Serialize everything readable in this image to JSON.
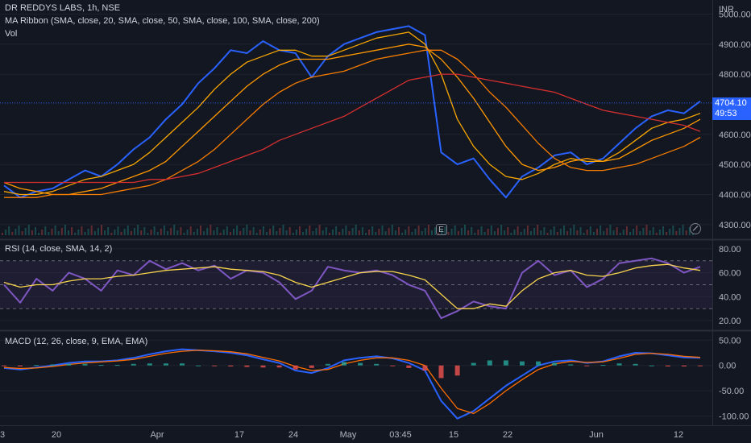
{
  "header": {
    "symbol_line": "DR REDDYS LABS, 1h, NSE",
    "ma_ribbon_line": "MA Ribbon (SMA, close, 20, SMA, close, 50, SMA, close, 100, SMA, close, 200)",
    "vol_line": "Vol",
    "currency": "INR"
  },
  "price_tag": {
    "value": "4704.10",
    "countdown": "49:53"
  },
  "colors": {
    "background": "#131722",
    "price": "#2962ff",
    "sma20": "#f7a600",
    "sma50": "#ff9800",
    "sma100": "#f57c00",
    "sma200": "#d32f2f",
    "rsi": "#7e57c2",
    "rsi_ma": "#f7d44c",
    "macd": "#2962ff",
    "signal": "#ff6d00",
    "hist_pos": "#26a69a",
    "hist_neg": "#ef5350"
  },
  "rsi_panel": {
    "title": "RSI (14, close, SMA, 14, 2)"
  },
  "macd_panel": {
    "title": "MACD (12, 26, close, 9, EMA, EMA)"
  },
  "x_ticks": [
    "3",
    "20",
    "Apr",
    "17",
    "24",
    "May",
    "03:45",
    "15",
    "22",
    "Jun",
    "12"
  ],
  "earnings_marker": "E",
  "chart_data": [
    {
      "type": "line",
      "panel": "price",
      "ylim": [
        4270,
        5020
      ],
      "y_ticks": [
        {
          "value": 5000,
          "label": "5000.00"
        },
        {
          "value": 4900,
          "label": "4900.00"
        },
        {
          "value": 4800,
          "label": "4800.00"
        },
        {
          "value": 4600,
          "label": "4600.00"
        },
        {
          "value": 4500,
          "label": "4500.00"
        },
        {
          "value": 4400,
          "label": "4400.00"
        },
        {
          "value": 4300,
          "label": "4300.00"
        }
      ],
      "x": [
        0,
        20,
        40,
        60,
        80,
        100,
        120,
        140,
        160,
        180,
        200,
        220,
        240,
        260,
        280,
        300,
        320,
        340,
        360,
        380,
        400,
        420,
        440,
        460,
        480,
        500,
        520,
        540,
        560,
        580,
        600,
        620,
        640,
        660,
        680,
        700,
        720,
        740,
        760,
        780,
        800,
        820,
        840,
        860
      ],
      "series": [
        {
          "key": "price",
          "values": [
            4430,
            4390,
            4410,
            4420,
            4450,
            4480,
            4460,
            4500,
            4550,
            4590,
            4650,
            4700,
            4770,
            4820,
            4880,
            4870,
            4910,
            4880,
            4870,
            4790,
            4860,
            4900,
            4920,
            4940,
            4950,
            4960,
            4930,
            4540,
            4500,
            4520,
            4450,
            4390,
            4460,
            4490,
            4530,
            4540,
            4500,
            4520,
            4570,
            4620,
            4660,
            4680,
            4670,
            4710
          ]
        },
        {
          "key": "sma20",
          "values": [
            4410,
            4400,
            4400,
            4410,
            4430,
            4450,
            4460,
            4480,
            4500,
            4540,
            4590,
            4640,
            4690,
            4750,
            4800,
            4840,
            4860,
            4880,
            4880,
            4860,
            4860,
            4880,
            4900,
            4920,
            4930,
            4940,
            4900,
            4800,
            4650,
            4560,
            4500,
            4460,
            4450,
            4470,
            4500,
            4520,
            4510,
            4510,
            4540,
            4580,
            4620,
            4640,
            4650,
            4670
          ]
        },
        {
          "key": "sma50",
          "values": [
            4440,
            4420,
            4410,
            4400,
            4400,
            4410,
            4420,
            4440,
            4460,
            4480,
            4510,
            4560,
            4610,
            4660,
            4710,
            4760,
            4800,
            4830,
            4850,
            4850,
            4850,
            4860,
            4870,
            4880,
            4890,
            4900,
            4890,
            4850,
            4790,
            4720,
            4640,
            4560,
            4500,
            4480,
            4490,
            4510,
            4520,
            4510,
            4520,
            4550,
            4580,
            4600,
            4620,
            4650
          ]
        },
        {
          "key": "sma100",
          "values": [
            4390,
            4390,
            4390,
            4400,
            4400,
            4400,
            4400,
            4410,
            4420,
            4430,
            4450,
            4480,
            4510,
            4550,
            4600,
            4650,
            4700,
            4740,
            4770,
            4790,
            4800,
            4810,
            4830,
            4850,
            4860,
            4870,
            4880,
            4880,
            4850,
            4800,
            4740,
            4690,
            4630,
            4570,
            4520,
            4490,
            4480,
            4480,
            4490,
            4500,
            4520,
            4540,
            4560,
            4590
          ]
        },
        {
          "key": "sma200",
          "values": [
            4440,
            4440,
            4440,
            4440,
            4440,
            4440,
            4440,
            4440,
            4440,
            4450,
            4450,
            4460,
            4470,
            4490,
            4510,
            4530,
            4550,
            4580,
            4600,
            4620,
            4640,
            4660,
            4690,
            4720,
            4750,
            4780,
            4790,
            4800,
            4800,
            4790,
            4780,
            4770,
            4760,
            4750,
            4740,
            4720,
            4700,
            4680,
            4670,
            4660,
            4650,
            4640,
            4630,
            4610
          ]
        }
      ]
    },
    {
      "type": "line",
      "panel": "rsi",
      "ylim": [
        16,
        86
      ],
      "bands": [
        30,
        50,
        70
      ],
      "y_ticks": [
        {
          "value": 80,
          "label": "80.00"
        },
        {
          "value": 60,
          "label": "60.00"
        },
        {
          "value": 40,
          "label": "40.00"
        },
        {
          "value": 20,
          "label": "20.00"
        }
      ],
      "x": [
        0,
        20,
        40,
        60,
        80,
        100,
        120,
        140,
        160,
        180,
        200,
        220,
        240,
        260,
        280,
        300,
        320,
        340,
        360,
        380,
        400,
        420,
        440,
        460,
        480,
        500,
        520,
        540,
        560,
        580,
        600,
        620,
        640,
        660,
        680,
        700,
        720,
        740,
        760,
        780,
        800,
        820,
        840,
        860
      ],
      "series": [
        {
          "key": "rsi",
          "values": [
            50,
            35,
            55,
            45,
            60,
            55,
            45,
            62,
            58,
            70,
            63,
            68,
            62,
            66,
            55,
            62,
            60,
            52,
            38,
            45,
            65,
            62,
            60,
            62,
            58,
            50,
            45,
            22,
            28,
            36,
            32,
            30,
            60,
            70,
            58,
            62,
            48,
            55,
            68,
            70,
            72,
            68,
            60,
            65
          ]
        },
        {
          "key": "rsi_ma",
          "values": [
            52,
            48,
            50,
            50,
            53,
            55,
            55,
            57,
            58,
            60,
            62,
            63,
            64,
            65,
            63,
            62,
            61,
            58,
            52,
            48,
            52,
            56,
            60,
            61,
            61,
            58,
            54,
            42,
            30,
            30,
            34,
            32,
            45,
            55,
            60,
            62,
            58,
            57,
            60,
            64,
            66,
            67,
            64,
            62
          ]
        }
      ]
    },
    {
      "type": "line",
      "panel": "macd",
      "ylim": [
        -115,
        60
      ],
      "y_ticks": [
        {
          "value": 50,
          "label": "50.00"
        },
        {
          "value": 0,
          "label": "0.00"
        },
        {
          "value": -50,
          "label": "-50.00"
        },
        {
          "value": -100,
          "label": "-100.00"
        }
      ],
      "x": [
        0,
        20,
        40,
        60,
        80,
        100,
        120,
        140,
        160,
        180,
        200,
        220,
        240,
        260,
        280,
        300,
        320,
        340,
        360,
        380,
        400,
        420,
        440,
        460,
        480,
        500,
        520,
        540,
        560,
        580,
        600,
        620,
        640,
        660,
        680,
        700,
        720,
        740,
        760,
        780,
        800,
        820,
        840,
        860
      ],
      "series": [
        {
          "key": "macd",
          "values": [
            -5,
            -8,
            -4,
            0,
            5,
            8,
            8,
            10,
            15,
            22,
            28,
            32,
            30,
            28,
            25,
            20,
            12,
            5,
            -10,
            -15,
            -5,
            10,
            15,
            18,
            14,
            5,
            -10,
            -70,
            -105,
            -90,
            -65,
            -40,
            -20,
            0,
            8,
            10,
            5,
            8,
            18,
            25,
            24,
            20,
            16,
            15
          ]
        },
        {
          "key": "signal",
          "values": [
            -4,
            -6,
            -5,
            -2,
            2,
            5,
            7,
            9,
            12,
            18,
            24,
            28,
            30,
            29,
            27,
            23,
            16,
            9,
            -2,
            -10,
            -8,
            3,
            10,
            15,
            15,
            10,
            0,
            -45,
            -85,
            -95,
            -75,
            -50,
            -28,
            -8,
            3,
            8,
            6,
            7,
            14,
            22,
            24,
            22,
            18,
            16
          ]
        },
        {
          "key": "hist",
          "values": [
            -1,
            -2,
            1,
            2,
            3,
            3,
            1,
            1,
            3,
            4,
            4,
            4,
            0,
            -1,
            -2,
            -3,
            -4,
            -4,
            -8,
            -5,
            3,
            7,
            5,
            3,
            -1,
            -5,
            -10,
            -25,
            -20,
            5,
            10,
            10,
            8,
            8,
            5,
            2,
            -1,
            1,
            4,
            3,
            0,
            -2,
            -2,
            -1
          ]
        }
      ]
    }
  ]
}
